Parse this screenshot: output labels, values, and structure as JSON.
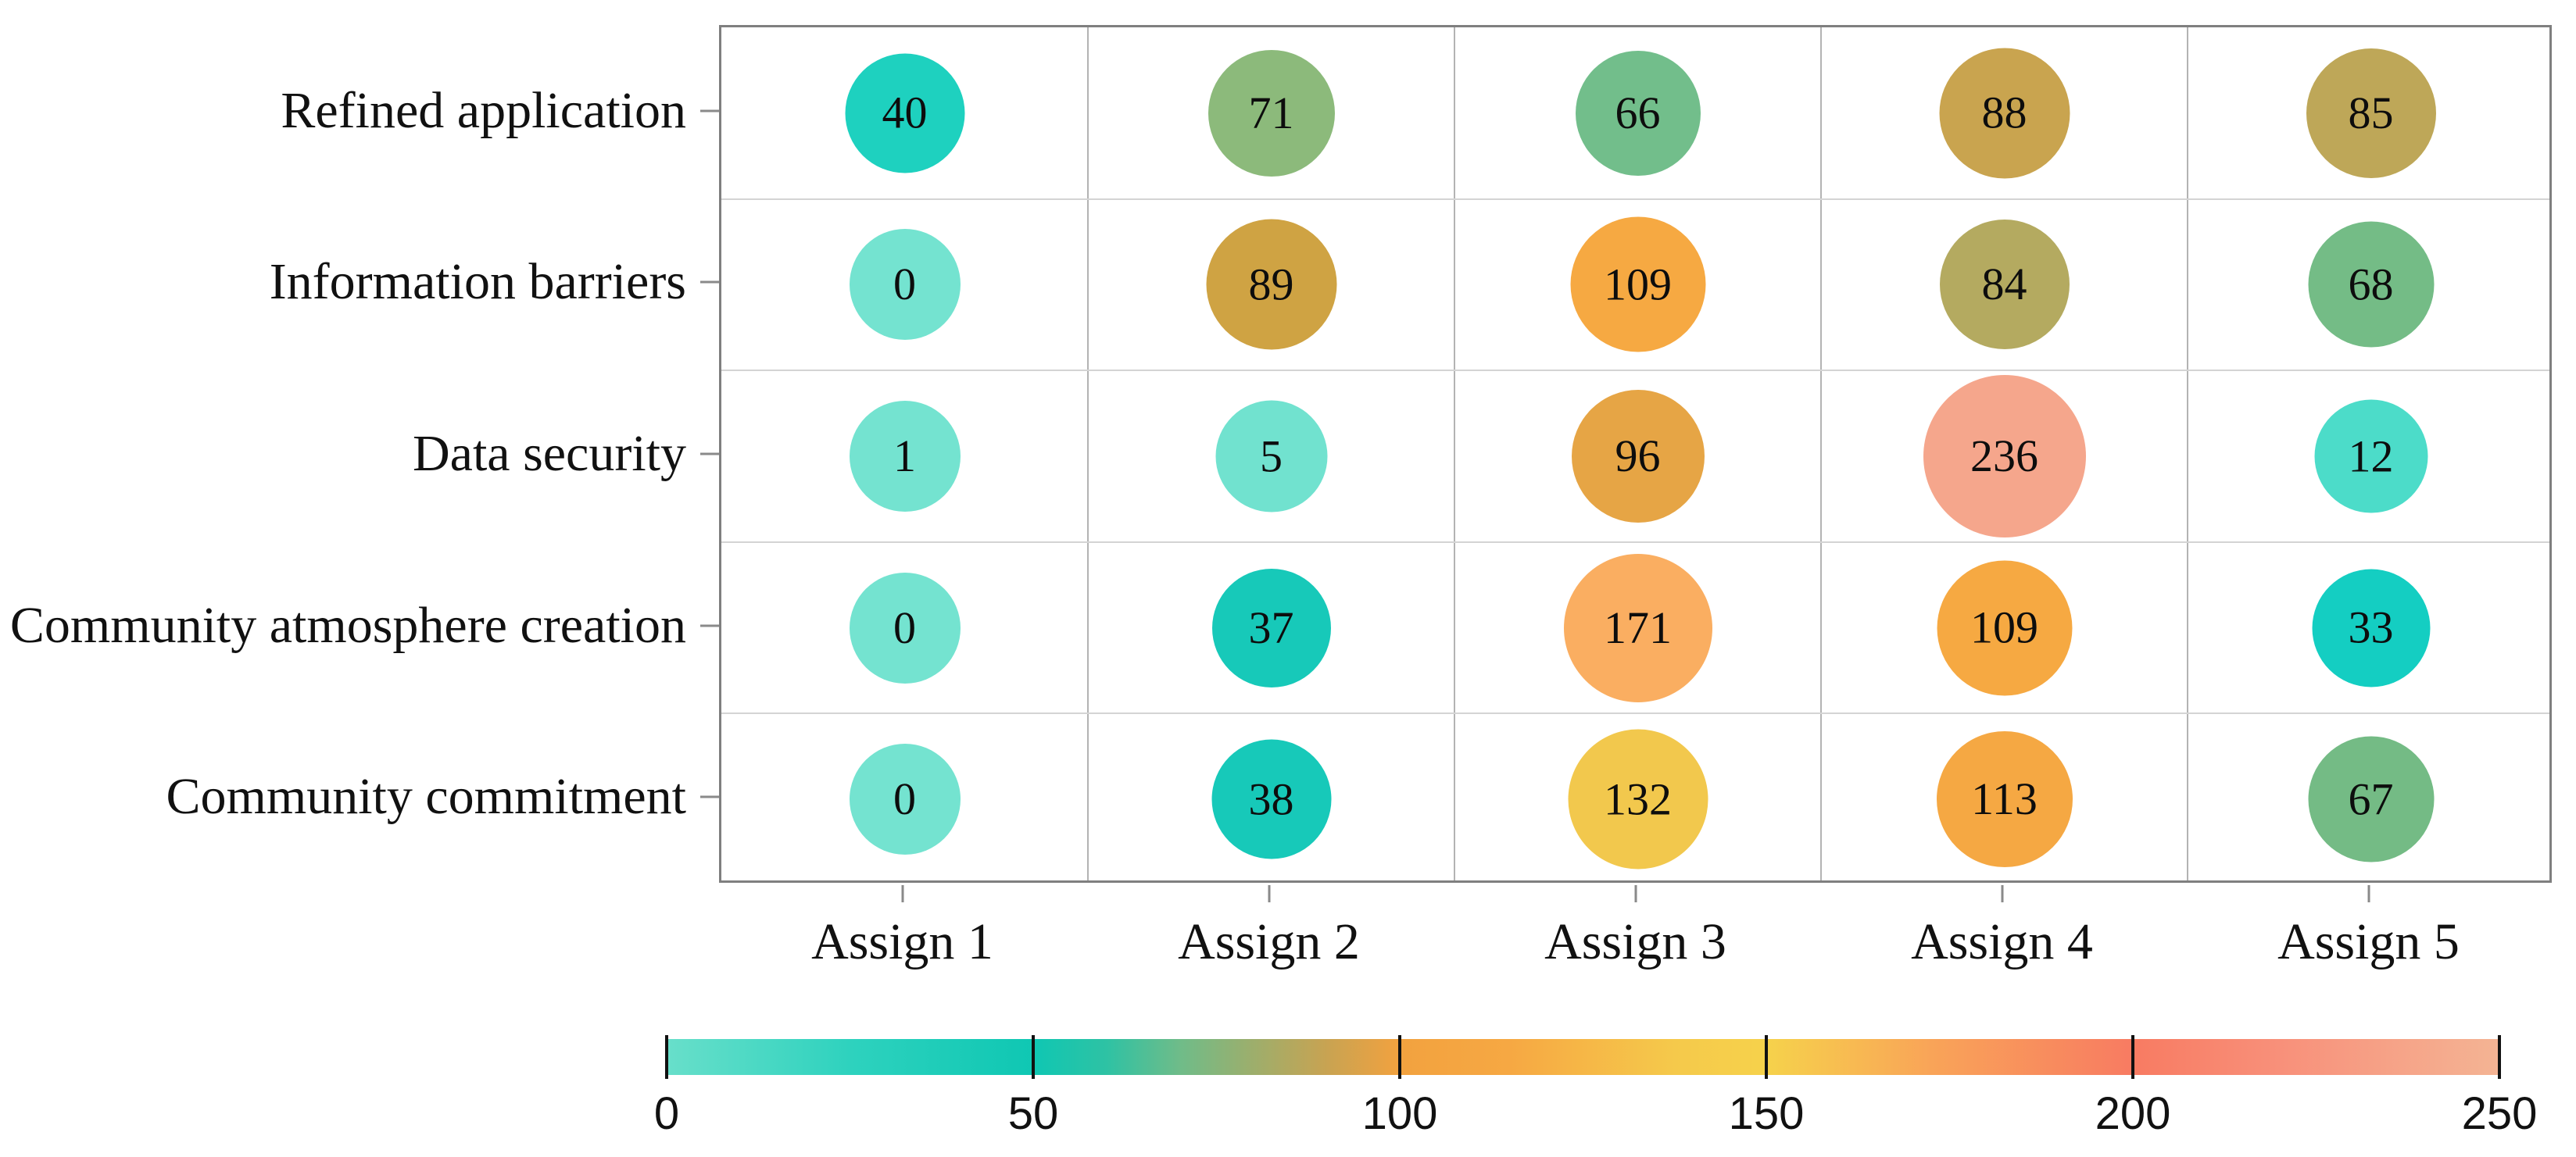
{
  "chart_data": {
    "type": "heatmap",
    "subtype": "bubble-grid",
    "title": "",
    "categories_x": [
      "Assign 1",
      "Assign 2",
      "Assign 3",
      "Assign 4",
      "Assign 5"
    ],
    "categories_y": [
      "Refined application",
      "Information barriers",
      "Data security",
      "Community atmosphere creation",
      "Community commitment"
    ],
    "series": [
      {
        "name": "Refined application",
        "values": [
          40,
          71,
          66,
          88,
          85
        ]
      },
      {
        "name": "Information barriers",
        "values": [
          0,
          89,
          109,
          84,
          68
        ]
      },
      {
        "name": "Data security",
        "values": [
          1,
          5,
          96,
          236,
          12
        ]
      },
      {
        "name": "Community atmosphere creation",
        "values": [
          0,
          37,
          171,
          109,
          33
        ]
      },
      {
        "name": "Community commitment",
        "values": [
          0,
          38,
          132,
          113,
          67
        ]
      }
    ],
    "cell_colors": [
      [
        "#1ED1BF",
        "#8CBA7B",
        "#72BE8B",
        "#C9A44F",
        "#BEA758"
      ],
      [
        "#74E3D0",
        "#CFA343",
        "#F6A942",
        "#B4AA60",
        "#74BC86"
      ],
      [
        "#74E3D0",
        "#71E2CF",
        "#E6A545",
        "#F5A68C",
        "#4CDCC9"
      ],
      [
        "#74E3D0",
        "#17C9B9",
        "#FAAE61",
        "#F6A942",
        "#14CEC2"
      ],
      [
        "#74E3D0",
        "#17C9B9",
        "#F2C84D",
        "#F5A843",
        "#74BB85"
      ]
    ],
    "cell_sizes": [
      [
        153,
        162,
        160,
        167,
        166
      ],
      [
        142,
        167,
        173,
        166,
        161
      ],
      [
        142,
        143,
        170,
        208,
        145
      ],
      [
        142,
        152,
        190,
        173,
        151
      ],
      [
        142,
        153,
        179,
        174,
        161
      ]
    ],
    "grid": true,
    "legend_position": "bottom",
    "colorbar": {
      "min": 0,
      "max": 250,
      "tick_labels": [
        "0",
        "50",
        "100",
        "150",
        "200",
        "250"
      ],
      "gradient_stops": [
        {
          "pos": 0.0,
          "color": "#68DFCA"
        },
        {
          "pos": 0.1,
          "color": "#2ED2BE"
        },
        {
          "pos": 0.2,
          "color": "#0FC7B3"
        },
        {
          "pos": 0.24,
          "color": "#2EC2A4"
        },
        {
          "pos": 0.28,
          "color": "#6FBC89"
        },
        {
          "pos": 0.32,
          "color": "#9DAE6C"
        },
        {
          "pos": 0.36,
          "color": "#C8A352"
        },
        {
          "pos": 0.4,
          "color": "#F2A23F"
        },
        {
          "pos": 0.46,
          "color": "#F6A843"
        },
        {
          "pos": 0.55,
          "color": "#F5C94B"
        },
        {
          "pos": 0.6,
          "color": "#F6D24B"
        },
        {
          "pos": 0.69,
          "color": "#F9A458"
        },
        {
          "pos": 0.8,
          "color": "#F87B62"
        },
        {
          "pos": 0.88,
          "color": "#F8907A"
        },
        {
          "pos": 1.0,
          "color": "#F4B494"
        }
      ]
    },
    "text_color": "#111111",
    "border_color": "#7f7f7f"
  }
}
